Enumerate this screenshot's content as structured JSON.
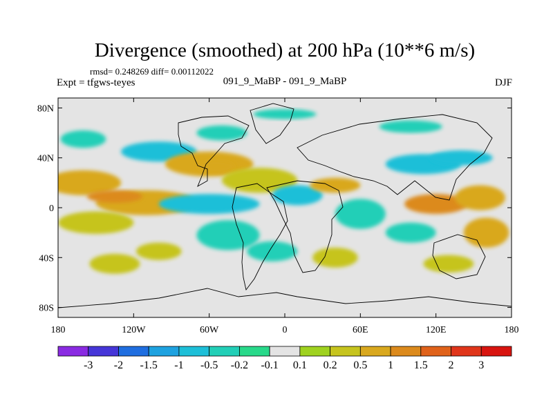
{
  "chart_data": {
    "type": "heatmap",
    "title": "Divergence (smoothed) at 200 hPa (10**6 m/s)",
    "stats_line": "rmsd= 0.248269 diff= 0.00112022",
    "experiment_label": "Expt = tfgws-teyes",
    "comparison": "091_9_MaBP - 091_9_MaBP",
    "season": "DJF",
    "x_ticks": [
      {
        "value": -180,
        "label": "180"
      },
      {
        "value": -120,
        "label": "120W"
      },
      {
        "value": -60,
        "label": "60W"
      },
      {
        "value": 0,
        "label": "0"
      },
      {
        "value": 60,
        "label": "60E"
      },
      {
        "value": 120,
        "label": "120E"
      },
      {
        "value": 180,
        "label": "180"
      }
    ],
    "y_ticks": [
      {
        "value": 80,
        "label": "80N"
      },
      {
        "value": 40,
        "label": "40N"
      },
      {
        "value": 0,
        "label": "0"
      },
      {
        "value": -40,
        "label": "40S"
      },
      {
        "value": -80,
        "label": "80S"
      }
    ],
    "xlim": [
      -180,
      180
    ],
    "ylim": [
      -88,
      88
    ],
    "colorbar": {
      "labels": [
        "-3",
        "-2",
        "-1.5",
        "-1",
        "-0.5",
        "-0.2",
        "-0.1",
        "0.1",
        "0.2",
        "0.5",
        "1",
        "1.5",
        "2",
        "3"
      ],
      "colors": [
        "#8a2be2",
        "#4636d8",
        "#1f6ee0",
        "#1ea2e0",
        "#1dbfd8",
        "#22cfb7",
        "#28d98a",
        "#e4e4e4",
        "#9fd21f",
        "#c6c41e",
        "#d9a81e",
        "#dc8a1c",
        "#e0621a",
        "#e0351a",
        "#d8140f"
      ],
      "neutral_color": "#e4e4e4"
    },
    "field_regions": [
      {
        "lon": -160,
        "lat": 20,
        "rlon": 30,
        "rlat": 10,
        "value": 0.6
      },
      {
        "lon": -110,
        "lat": 4,
        "rlon": 40,
        "rlat": 10,
        "value": 0.9
      },
      {
        "lon": -135,
        "lat": 9,
        "rlon": 22,
        "rlat": 5,
        "value": 1.1
      },
      {
        "lon": -150,
        "lat": -12,
        "rlon": 30,
        "rlat": 9,
        "value": 0.4
      },
      {
        "lon": -100,
        "lat": 45,
        "rlon": 30,
        "rlat": 8,
        "value": -0.6
      },
      {
        "lon": -60,
        "lat": 35,
        "rlon": 35,
        "rlat": 10,
        "value": 0.6
      },
      {
        "lon": -55,
        "lat": 33,
        "rlon": 15,
        "rlat": 5,
        "value": 1.0
      },
      {
        "lon": -20,
        "lat": 22,
        "rlon": 30,
        "rlat": 10,
        "value": 0.5
      },
      {
        "lon": -60,
        "lat": 3,
        "rlon": 40,
        "rlat": 8,
        "value": -0.5
      },
      {
        "lon": -45,
        "lat": -22,
        "rlon": 25,
        "rlat": 12,
        "value": -0.4
      },
      {
        "lon": -135,
        "lat": -45,
        "rlon": 20,
        "rlat": 8,
        "value": 0.3
      },
      {
        "lon": -100,
        "lat": -35,
        "rlon": 18,
        "rlat": 7,
        "value": 0.3
      },
      {
        "lon": -160,
        "lat": 55,
        "rlon": 18,
        "rlat": 7,
        "value": -0.2
      },
      {
        "lon": -50,
        "lat": 60,
        "rlon": 20,
        "rlat": 6,
        "value": -0.2
      },
      {
        "lon": 10,
        "lat": 10,
        "rlon": 20,
        "rlat": 8,
        "value": -0.5
      },
      {
        "lon": 40,
        "lat": 18,
        "rlon": 20,
        "rlat": 6,
        "value": 0.6
      },
      {
        "lon": 60,
        "lat": -5,
        "rlon": 20,
        "rlat": 12,
        "value": -0.4
      },
      {
        "lon": 110,
        "lat": 35,
        "rlon": 30,
        "rlat": 8,
        "value": -0.8
      },
      {
        "lon": 140,
        "lat": 40,
        "rlon": 25,
        "rlat": 6,
        "value": -0.6
      },
      {
        "lon": 120,
        "lat": 3,
        "rlon": 25,
        "rlat": 8,
        "value": 1.1
      },
      {
        "lon": 155,
        "lat": 8,
        "rlon": 20,
        "rlat": 10,
        "value": 0.8
      },
      {
        "lon": 160,
        "lat": -20,
        "rlon": 18,
        "rlat": 12,
        "value": 0.6
      },
      {
        "lon": 100,
        "lat": -20,
        "rlon": 20,
        "rlat": 8,
        "value": -0.3
      },
      {
        "lon": 130,
        "lat": -45,
        "rlon": 20,
        "rlat": 7,
        "value": 0.3
      },
      {
        "lon": 40,
        "lat": -40,
        "rlon": 18,
        "rlat": 8,
        "value": 0.3
      },
      {
        "lon": -10,
        "lat": -35,
        "rlon": 20,
        "rlat": 8,
        "value": -0.3
      },
      {
        "lon": 100,
        "lat": 65,
        "rlon": 25,
        "rlat": 5,
        "value": -0.2
      },
      {
        "lon": 0,
        "lat": 75,
        "rlon": 25,
        "rlat": 4,
        "value": -0.2
      }
    ]
  }
}
